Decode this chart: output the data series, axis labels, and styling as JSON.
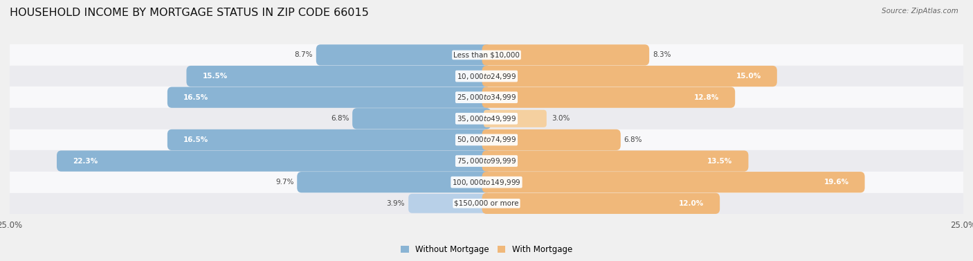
{
  "title": "HOUSEHOLD INCOME BY MORTGAGE STATUS IN ZIP CODE 66015",
  "source": "Source: ZipAtlas.com",
  "categories": [
    "Less than $10,000",
    "$10,000 to $24,999",
    "$25,000 to $34,999",
    "$35,000 to $49,999",
    "$50,000 to $74,999",
    "$75,000 to $99,999",
    "$100,000 to $149,999",
    "$150,000 or more"
  ],
  "without_mortgage": [
    8.7,
    15.5,
    16.5,
    6.8,
    16.5,
    22.3,
    9.7,
    3.9
  ],
  "with_mortgage": [
    8.3,
    15.0,
    12.8,
    3.0,
    6.8,
    13.5,
    19.6,
    12.0
  ],
  "color_without": "#8ab4d4",
  "color_with": "#f0b87a",
  "color_without_light": "#b8d0e8",
  "color_with_light": "#f5d0a0",
  "x_max": 25.0,
  "title_fontsize": 11.5,
  "label_fontsize": 7.5,
  "value_fontsize": 7.5,
  "tick_fontsize": 8.5,
  "legend_fontsize": 8.5,
  "fig_bg": "#f0f0f0",
  "row_bg_light": "#f8f8fa",
  "row_bg_dark": "#ebebef"
}
